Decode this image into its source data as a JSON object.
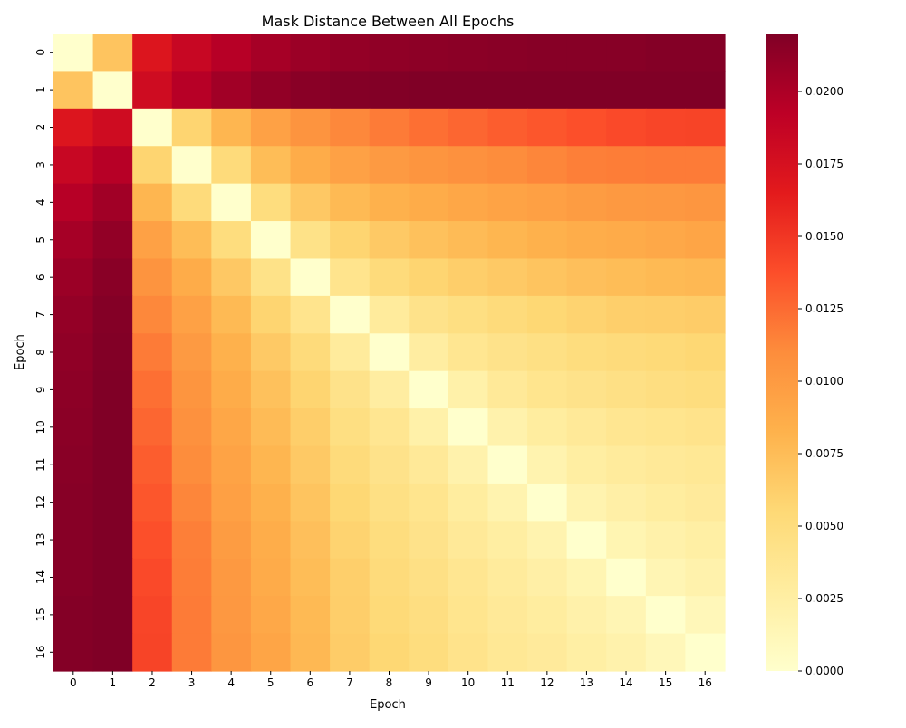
{
  "chart_data": {
    "type": "heatmap",
    "title": "Mask Distance Between All Epochs",
    "xlabel": "Epoch",
    "ylabel": "Epoch",
    "x_categories": [
      "0",
      "1",
      "2",
      "3",
      "4",
      "5",
      "6",
      "7",
      "8",
      "9",
      "10",
      "11",
      "12",
      "13",
      "14",
      "15",
      "16"
    ],
    "y_categories": [
      "0",
      "1",
      "2",
      "3",
      "4",
      "5",
      "6",
      "7",
      "8",
      "9",
      "10",
      "11",
      "12",
      "13",
      "14",
      "15",
      "16"
    ],
    "colormap": "YlOrRd",
    "colorbar": {
      "vmin": 0,
      "vmax": 0.022,
      "ticks": [
        "0.0000",
        "0.0025",
        "0.0050",
        "0.0075",
        "0.0100",
        "0.0125",
        "0.0150",
        "0.0175",
        "0.0200"
      ],
      "tick_values": [
        0,
        0.0025,
        0.005,
        0.0075,
        0.01,
        0.0125,
        0.015,
        0.0175,
        0.02
      ]
    },
    "values": [
      [
        0.0,
        0.007,
        0.017,
        0.0185,
        0.0195,
        0.0203,
        0.0208,
        0.0211,
        0.0213,
        0.0214,
        0.0215,
        0.0216,
        0.0217,
        0.0217,
        0.0217,
        0.0218,
        0.0218
      ],
      [
        0.007,
        0.0,
        0.018,
        0.0195,
        0.0205,
        0.0212,
        0.0216,
        0.0218,
        0.0219,
        0.022,
        0.022,
        0.0221,
        0.0221,
        0.0222,
        0.0222,
        0.0222,
        0.0222
      ],
      [
        0.017,
        0.018,
        0.0,
        0.0058,
        0.008,
        0.0095,
        0.0105,
        0.0112,
        0.0118,
        0.0123,
        0.0127,
        0.0131,
        0.0134,
        0.0137,
        0.014,
        0.0142,
        0.0143
      ],
      [
        0.0185,
        0.0195,
        0.0058,
        0.0,
        0.0052,
        0.0075,
        0.0087,
        0.0095,
        0.01,
        0.0104,
        0.0107,
        0.011,
        0.0113,
        0.0116,
        0.0117,
        0.0118,
        0.0118
      ],
      [
        0.0195,
        0.0205,
        0.008,
        0.0052,
        0.0,
        0.005,
        0.0067,
        0.0077,
        0.0083,
        0.0087,
        0.0091,
        0.0094,
        0.0096,
        0.0099,
        0.0101,
        0.0102,
        0.0103
      ],
      [
        0.0203,
        0.0212,
        0.0095,
        0.0075,
        0.005,
        0.0,
        0.0043,
        0.0058,
        0.0066,
        0.0072,
        0.0076,
        0.008,
        0.0083,
        0.0086,
        0.0088,
        0.009,
        0.0092
      ],
      [
        0.0208,
        0.0216,
        0.0105,
        0.0087,
        0.0067,
        0.0043,
        0.0,
        0.004,
        0.0052,
        0.0058,
        0.0063,
        0.0066,
        0.007,
        0.0073,
        0.0075,
        0.0077,
        0.0078
      ],
      [
        0.0211,
        0.0218,
        0.0112,
        0.0095,
        0.0077,
        0.0058,
        0.004,
        0.0,
        0.003,
        0.0042,
        0.0047,
        0.0052,
        0.0056,
        0.0059,
        0.0062,
        0.0063,
        0.0064
      ],
      [
        0.0213,
        0.0219,
        0.0118,
        0.01,
        0.0083,
        0.0066,
        0.0052,
        0.003,
        0.0,
        0.0027,
        0.0037,
        0.0042,
        0.0046,
        0.005,
        0.0052,
        0.0054,
        0.0056
      ],
      [
        0.0214,
        0.022,
        0.0123,
        0.0104,
        0.0087,
        0.0072,
        0.0058,
        0.0042,
        0.0027,
        0.0,
        0.0022,
        0.0033,
        0.0039,
        0.0042,
        0.0045,
        0.0048,
        0.005
      ],
      [
        0.0215,
        0.022,
        0.0127,
        0.0107,
        0.0091,
        0.0076,
        0.0063,
        0.0047,
        0.0037,
        0.0022,
        0.0,
        0.002,
        0.0028,
        0.0033,
        0.0037,
        0.0039,
        0.0041
      ],
      [
        0.0216,
        0.0221,
        0.0131,
        0.011,
        0.0094,
        0.008,
        0.0066,
        0.0052,
        0.0042,
        0.0033,
        0.002,
        0.0,
        0.0018,
        0.0026,
        0.003,
        0.0033,
        0.0035
      ],
      [
        0.0217,
        0.0221,
        0.0134,
        0.0113,
        0.0096,
        0.0083,
        0.007,
        0.0056,
        0.0046,
        0.0039,
        0.0028,
        0.0018,
        0.0,
        0.0018,
        0.0024,
        0.0028,
        0.0031
      ],
      [
        0.0217,
        0.0222,
        0.0137,
        0.0116,
        0.0099,
        0.0086,
        0.0073,
        0.0059,
        0.005,
        0.0042,
        0.0033,
        0.0026,
        0.0018,
        0.0,
        0.0016,
        0.0021,
        0.0025
      ],
      [
        0.0217,
        0.0222,
        0.014,
        0.0117,
        0.0101,
        0.0088,
        0.0075,
        0.0062,
        0.0052,
        0.0045,
        0.0037,
        0.003,
        0.0024,
        0.0016,
        0.0,
        0.0015,
        0.002
      ],
      [
        0.0218,
        0.0222,
        0.0142,
        0.0118,
        0.0102,
        0.009,
        0.0077,
        0.0063,
        0.0054,
        0.0048,
        0.0039,
        0.0033,
        0.0028,
        0.0021,
        0.0015,
        0.0,
        0.0012
      ],
      [
        0.0218,
        0.0222,
        0.0143,
        0.0118,
        0.0103,
        0.0092,
        0.0078,
        0.0064,
        0.0056,
        0.005,
        0.0041,
        0.0035,
        0.0031,
        0.0025,
        0.002,
        0.0012,
        0.0
      ]
    ]
  }
}
